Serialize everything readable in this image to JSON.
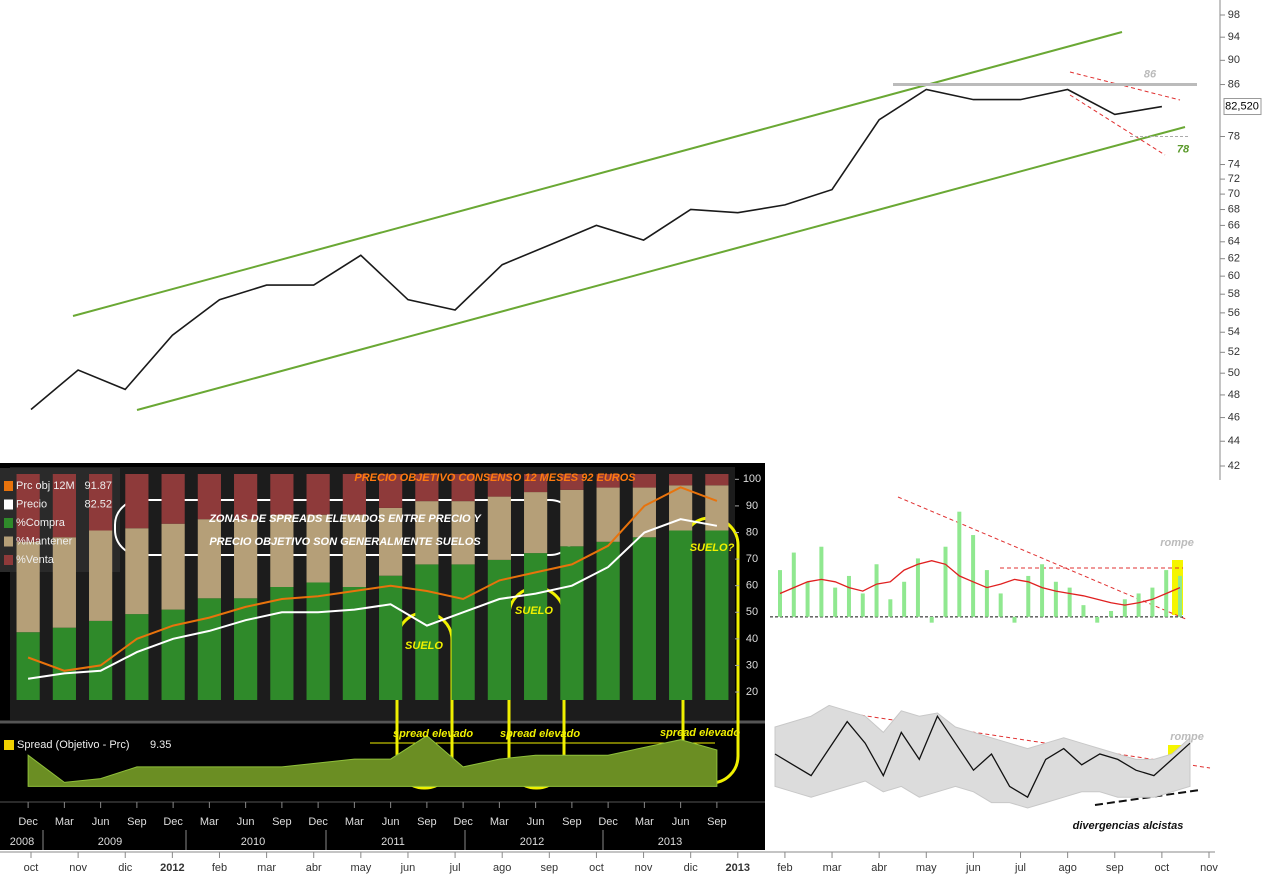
{
  "chart_data": [
    {
      "type": "line",
      "log": true,
      "categories": [
        "oct",
        "nov",
        "dic",
        "2012",
        "feb",
        "mar",
        "abr",
        "may",
        "jun",
        "jul",
        "ago",
        "sep",
        "oct",
        "nov",
        "dic",
        "2013",
        "feb",
        "mar",
        "abr",
        "may",
        "jun",
        "jul",
        "ago",
        "sep",
        "oct",
        "nov"
      ],
      "series": [
        {
          "color": "#1a1a1a",
          "values": [
            46.7,
            50.3,
            48.5,
            53.7,
            57.4,
            59,
            59,
            62.4,
            57.4,
            56.3,
            61.3,
            63.6,
            66,
            64.2,
            68,
            67.6,
            68.6,
            70.6,
            80.5,
            85.2,
            83.6,
            83.6,
            85.2,
            81.3,
            82.5,
            null
          ]
        }
      ],
      "ylim": [
        42,
        98
      ],
      "yticks": [
        42,
        44,
        46,
        48,
        50,
        52,
        54,
        56,
        58,
        60,
        62,
        64,
        66,
        68,
        70,
        72,
        74,
        78,
        86,
        90,
        94,
        98
      ],
      "last_value": {
        "value": 82.52,
        "label": "82,520"
      },
      "levels": [
        86,
        78
      ]
    },
    {
      "type": "bar",
      "stacked": true,
      "title": "PRECIO OBJETIVO CONSENSO 12 MESES 92 EUROS",
      "note": [
        "ZONAS DE SPREADS ELEVADOS ENTRE PRECIO Y",
        "PRECIO OBJETIVO SON GENERALMENTE SUELOS"
      ],
      "floors": [
        "SUELO",
        "SUELO",
        "SUELO?"
      ],
      "categories": [
        "Dec",
        "Mar",
        "Jun",
        "Sep",
        "Dec",
        "Mar",
        "Jun",
        "Sep",
        "Dec",
        "Mar",
        "Jun",
        "Sep",
        "Dec",
        "Mar",
        "Jun",
        "Sep",
        "Dec",
        "Mar",
        "Jun",
        "Sep"
      ],
      "years": [
        "2008",
        "2009",
        "2010",
        "2011",
        "2012",
        "2013"
      ],
      "series": [
        {
          "name": "Prc obj 12M",
          "kind": "line",
          "color": "#e8730c",
          "last": 91.87,
          "values": [
            33,
            28,
            30,
            40,
            45,
            48,
            52,
            55,
            56,
            58,
            60,
            58,
            55,
            62,
            65,
            68,
            75,
            90,
            97,
            91.87
          ]
        },
        {
          "name": "Precio",
          "kind": "line",
          "color": "#ffffff",
          "last": 82.52,
          "values": [
            25,
            27,
            28,
            35,
            40,
            43,
            47,
            50,
            50,
            51,
            53,
            45,
            50,
            55,
            57,
            60,
            67,
            80,
            85,
            82.52
          ]
        },
        {
          "name": "%Compra",
          "kind": "bar",
          "axis": "y2",
          "color": "#2f8a2a",
          "values": [
            30,
            32,
            35,
            38,
            40,
            45,
            45,
            50,
            52,
            50,
            55,
            60,
            60,
            62,
            65,
            68,
            70,
            72,
            75,
            75
          ]
        },
        {
          "name": "%Mantener",
          "kind": "bar",
          "axis": "y2",
          "color": "#b59f78",
          "values": [
            40,
            40,
            40,
            38,
            38,
            35,
            35,
            32,
            30,
            32,
            30,
            28,
            28,
            28,
            27,
            25,
            24,
            22,
            20,
            20
          ]
        },
        {
          "name": "%Venta",
          "kind": "bar",
          "axis": "y2",
          "color": "#8e3a3a",
          "values": [
            30,
            28,
            25,
            24,
            22,
            20,
            20,
            18,
            18,
            18,
            15,
            12,
            12,
            10,
            8,
            7,
            6,
            6,
            5,
            5
          ]
        }
      ],
      "ylim": [
        17,
        102
      ],
      "yticks": [
        20,
        30,
        40,
        50,
        60,
        70,
        80,
        90,
        100
      ],
      "y2lim": [
        0,
        100
      ]
    },
    {
      "type": "area",
      "annotation": [
        "spread elevado",
        "spread elevado",
        "spread elevado"
      ],
      "series": [
        {
          "name": "Spread (Objetivo - Prc)",
          "color": "#6b8e23",
          "last": 9.35,
          "values": [
            8,
            1,
            2,
            5,
            5,
            5,
            5,
            5,
            6,
            7,
            7,
            13,
            5,
            7,
            8,
            8,
            8,
            10,
            12,
            9.35
          ]
        }
      ],
      "ylim": [
        -3,
        15
      ]
    },
    {
      "type": "histogram-line",
      "annotation": "rompe",
      "series": [
        {
          "kind": "bar",
          "color": "#90e890",
          "values": [
            40,
            55,
            30,
            60,
            25,
            35,
            20,
            45,
            15,
            30,
            50,
            -5,
            60,
            90,
            70,
            40,
            20,
            -5,
            35,
            45,
            30,
            25,
            10,
            -5,
            5,
            15,
            20,
            25,
            40,
            35
          ]
        },
        {
          "kind": "line",
          "color": "#e02020",
          "values": [
            20,
            25,
            30,
            32,
            30,
            25,
            22,
            28,
            30,
            40,
            45,
            48,
            45,
            35,
            30,
            25,
            28,
            32,
            30,
            25,
            22,
            20,
            18,
            15,
            12,
            10,
            12,
            15,
            20,
            25
          ]
        }
      ],
      "ylim": [
        -7,
        100
      ]
    },
    {
      "type": "band-line",
      "annotation": [
        "rompe",
        "divergencias alcistas"
      ],
      "series": [
        {
          "color": "#111111",
          "values": [
            50,
            40,
            30,
            55,
            80,
            60,
            30,
            70,
            45,
            85,
            60,
            35,
            50,
            20,
            10,
            45,
            55,
            40,
            50,
            45,
            35,
            30,
            45,
            60
          ]
        }
      ],
      "band": {
        "upper": [
          75,
          80,
          85,
          95,
          90,
          85,
          70,
          90,
          85,
          88,
          75,
          70,
          65,
          60,
          55,
          60,
          65,
          60,
          55,
          50,
          45,
          45,
          50,
          65
        ],
        "lower": [
          20,
          15,
          10,
          15,
          20,
          25,
          15,
          20,
          10,
          15,
          20,
          15,
          5,
          5,
          0,
          5,
          10,
          15,
          15,
          10,
          10,
          10,
          15,
          20
        ]
      },
      "ylim": [
        0,
        100
      ]
    }
  ]
}
